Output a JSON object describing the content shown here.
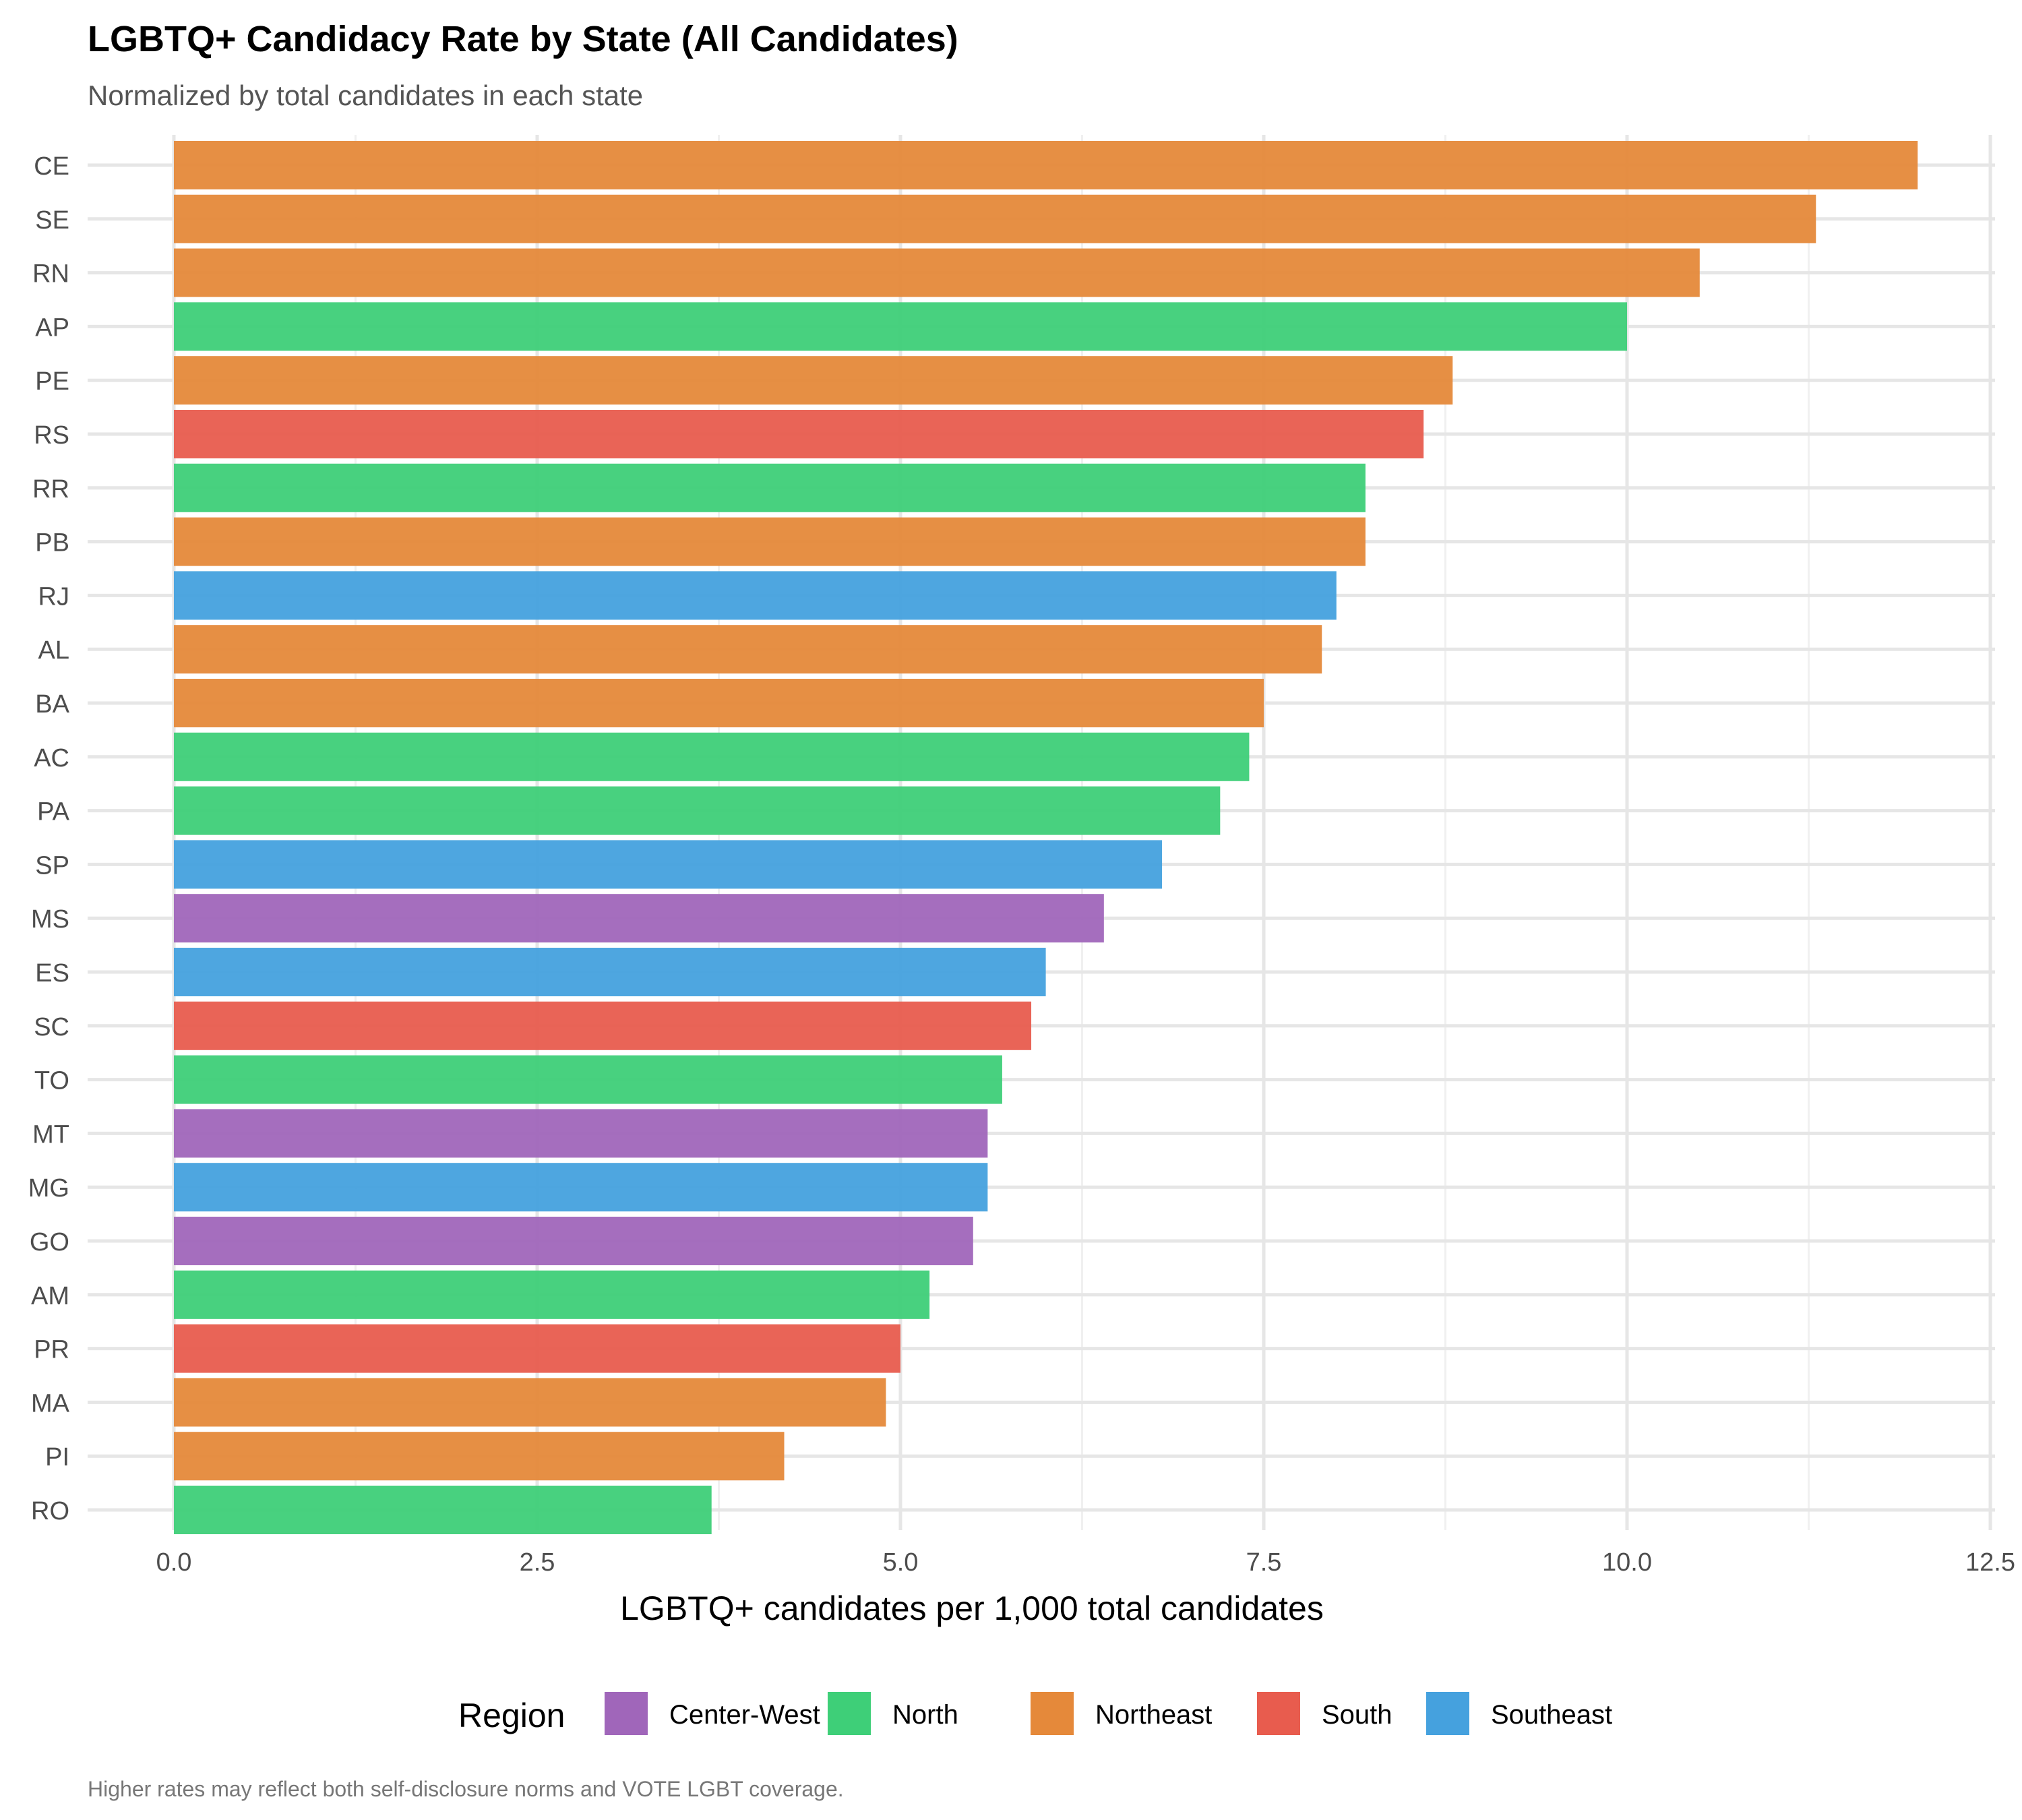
{
  "chart_data": {
    "type": "bar",
    "orientation": "horizontal",
    "title": "LGBTQ+ Candidacy Rate by State (All Candidates)",
    "subtitle": "Normalized by total candidates in each state",
    "caption": "Higher rates may reflect both self-disclosure norms and VOTE LGBT coverage.",
    "xlabel": "LGBTQ+ candidates per 1,000 total candidates",
    "ylabel": "",
    "xlim": [
      0,
      12.5
    ],
    "xticks": [
      "0.0",
      "2.5",
      "5.0",
      "7.5",
      "10.0",
      "12.5"
    ],
    "grid": true,
    "legend": {
      "title": "Region",
      "position": "bottom",
      "items": [
        {
          "name": "Center-West",
          "color": "#A066BA"
        },
        {
          "name": "North",
          "color": "#3ECF78"
        },
        {
          "name": "Northeast",
          "color": "#E5893A"
        },
        {
          "name": "South",
          "color": "#E85C4E"
        },
        {
          "name": "Southeast",
          "color": "#45A1DE"
        }
      ]
    },
    "categories": [
      "CE",
      "SE",
      "RN",
      "AP",
      "PE",
      "RS",
      "RR",
      "PB",
      "RJ",
      "AL",
      "BA",
      "AC",
      "PA",
      "SP",
      "MS",
      "ES",
      "SC",
      "TO",
      "MT",
      "MG",
      "GO",
      "AM",
      "PR",
      "MA",
      "PI",
      "RO"
    ],
    "values": [
      12.0,
      11.3,
      10.5,
      10.0,
      8.8,
      8.6,
      8.2,
      8.2,
      8.0,
      7.9,
      7.5,
      7.4,
      7.2,
      6.8,
      6.4,
      6.0,
      5.9,
      5.7,
      5.6,
      5.6,
      5.5,
      5.2,
      5.0,
      4.9,
      4.2,
      3.7
    ],
    "regions": [
      "Northeast",
      "Northeast",
      "Northeast",
      "North",
      "Northeast",
      "South",
      "North",
      "Northeast",
      "Southeast",
      "Northeast",
      "Northeast",
      "North",
      "North",
      "Southeast",
      "Center-West",
      "Southeast",
      "South",
      "North",
      "Center-West",
      "Southeast",
      "Center-West",
      "North",
      "South",
      "Northeast",
      "Northeast",
      "North"
    ]
  }
}
